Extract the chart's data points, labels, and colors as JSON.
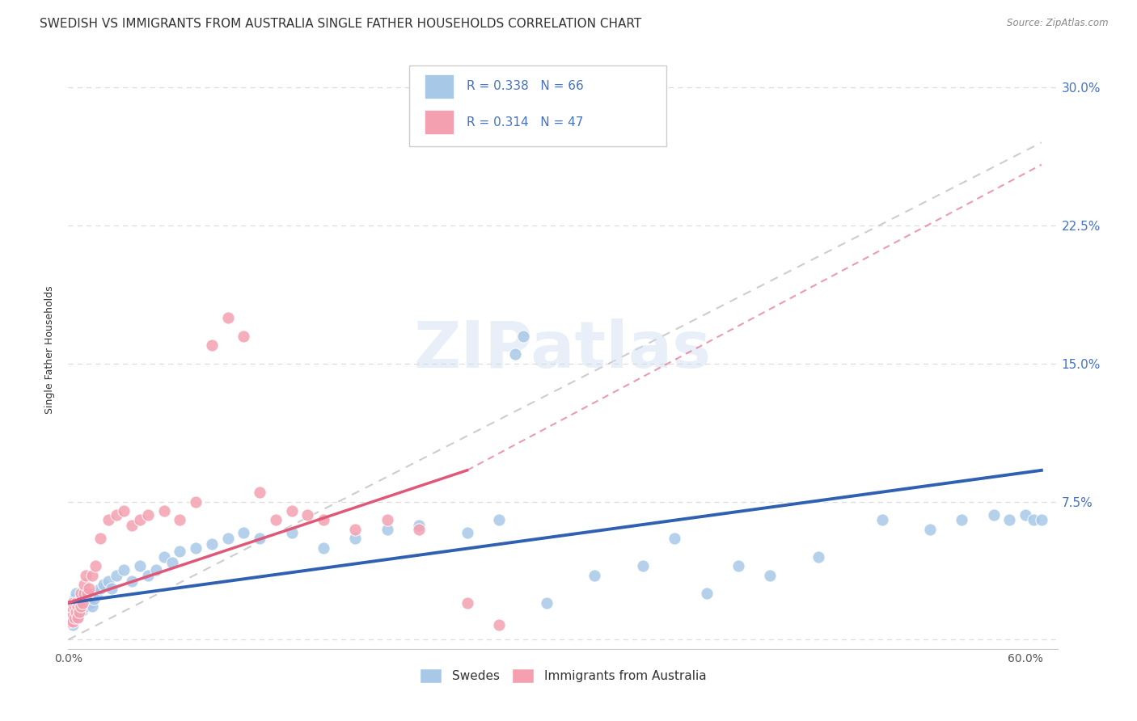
{
  "title": "SWEDISH VS IMMIGRANTS FROM AUSTRALIA SINGLE FATHER HOUSEHOLDS CORRELATION CHART",
  "source": "Source: ZipAtlas.com",
  "ylabel": "Single Father Households",
  "xlim": [
    0.0,
    0.62
  ],
  "ylim": [
    -0.005,
    0.32
  ],
  "swedes_color": "#a8c8e8",
  "immigrants_color": "#f4a0b0",
  "swedes_line_color": "#3060b0",
  "immigrants_line_color": "#e05878",
  "trend_line_color": "#c8c8c8",
  "legend_R_swedes": "0.338",
  "legend_N_swedes": "66",
  "legend_R_immigrants": "0.314",
  "legend_N_immigrants": "47",
  "background_color": "#ffffff",
  "grid_color": "#dddddd",
  "watermark_text": "ZIPatlas",
  "title_fontsize": 11,
  "swedes_scatter": {
    "x": [
      0.001,
      0.002,
      0.002,
      0.003,
      0.003,
      0.004,
      0.004,
      0.005,
      0.005,
      0.006,
      0.006,
      0.007,
      0.008,
      0.009,
      0.01,
      0.01,
      0.011,
      0.012,
      0.013,
      0.014,
      0.015,
      0.016,
      0.018,
      0.02,
      0.022,
      0.025,
      0.027,
      0.03,
      0.035,
      0.04,
      0.045,
      0.05,
      0.055,
      0.06,
      0.065,
      0.07,
      0.08,
      0.09,
      0.1,
      0.11,
      0.12,
      0.14,
      0.16,
      0.18,
      0.2,
      0.22,
      0.25,
      0.27,
      0.3,
      0.33,
      0.36,
      0.38,
      0.4,
      0.42,
      0.44,
      0.47,
      0.51,
      0.54,
      0.56,
      0.58,
      0.59,
      0.6,
      0.605,
      0.61,
      0.28,
      0.285
    ],
    "y": [
      0.01,
      0.012,
      0.015,
      0.008,
      0.02,
      0.018,
      0.022,
      0.015,
      0.025,
      0.012,
      0.018,
      0.02,
      0.022,
      0.016,
      0.02,
      0.025,
      0.018,
      0.022,
      0.025,
      0.02,
      0.018,
      0.022,
      0.025,
      0.028,
      0.03,
      0.032,
      0.028,
      0.035,
      0.038,
      0.032,
      0.04,
      0.035,
      0.038,
      0.045,
      0.042,
      0.048,
      0.05,
      0.052,
      0.055,
      0.058,
      0.055,
      0.058,
      0.05,
      0.055,
      0.06,
      0.062,
      0.058,
      0.065,
      0.02,
      0.035,
      0.04,
      0.055,
      0.025,
      0.04,
      0.035,
      0.045,
      0.065,
      0.06,
      0.065,
      0.068,
      0.065,
      0.068,
      0.065,
      0.065,
      0.155,
      0.165
    ]
  },
  "immigrants_scatter": {
    "x": [
      0.001,
      0.001,
      0.002,
      0.002,
      0.003,
      0.003,
      0.004,
      0.004,
      0.005,
      0.005,
      0.006,
      0.006,
      0.007,
      0.007,
      0.008,
      0.008,
      0.009,
      0.01,
      0.01,
      0.011,
      0.012,
      0.013,
      0.015,
      0.017,
      0.02,
      0.025,
      0.03,
      0.035,
      0.04,
      0.045,
      0.05,
      0.06,
      0.07,
      0.08,
      0.09,
      0.1,
      0.11,
      0.12,
      0.13,
      0.14,
      0.15,
      0.16,
      0.18,
      0.2,
      0.22,
      0.25,
      0.27
    ],
    "y": [
      0.01,
      0.015,
      0.012,
      0.018,
      0.01,
      0.02,
      0.012,
      0.018,
      0.015,
      0.02,
      0.012,
      0.018,
      0.015,
      0.02,
      0.018,
      0.025,
      0.02,
      0.025,
      0.03,
      0.035,
      0.025,
      0.028,
      0.035,
      0.04,
      0.055,
      0.065,
      0.068,
      0.07,
      0.062,
      0.065,
      0.068,
      0.07,
      0.065,
      0.075,
      0.16,
      0.175,
      0.165,
      0.08,
      0.065,
      0.07,
      0.068,
      0.065,
      0.06,
      0.065,
      0.06,
      0.02,
      0.008
    ]
  },
  "blue_line": {
    "x0": 0.0,
    "x1": 0.61,
    "y0": 0.02,
    "y1": 0.092
  },
  "pink_solid_line": {
    "x0": 0.0,
    "x1": 0.25,
    "y0": 0.02,
    "y1": 0.092
  },
  "pink_dashed_line": {
    "x0": 0.25,
    "x1": 0.61,
    "y0": 0.092,
    "y1": 0.258
  },
  "gray_dashed_line": {
    "x0": 0.0,
    "x1": 0.61,
    "y0": 0.0,
    "y1": 0.27
  }
}
